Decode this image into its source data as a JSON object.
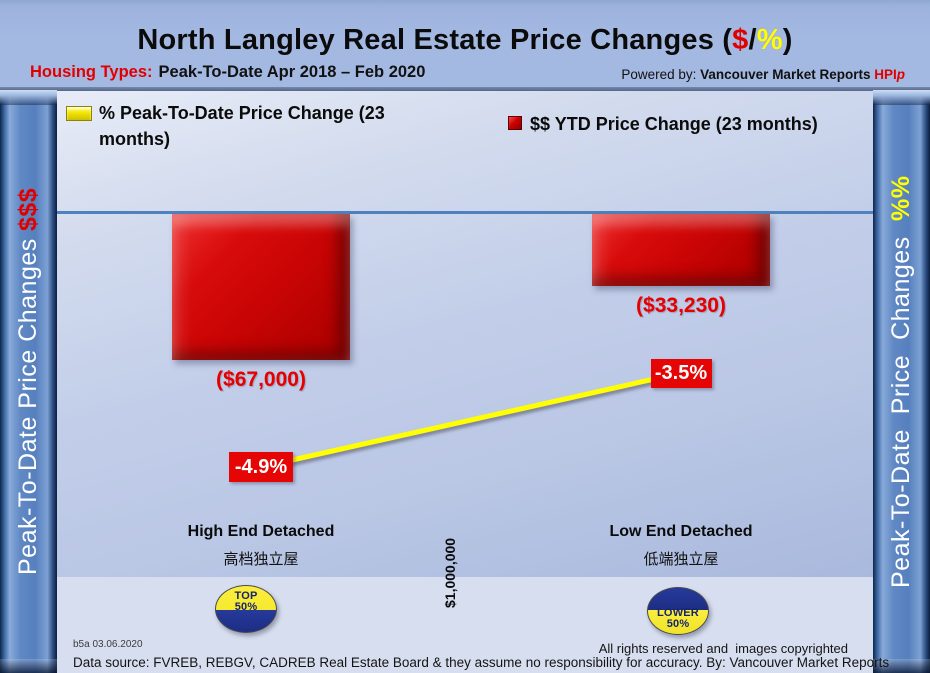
{
  "header": {
    "title": {
      "prefix": "North Langley Real Estate Price Changes (",
      "dollar": "$",
      "slash": "/",
      "percent": "%",
      "suffix": ")"
    },
    "subtitle": {
      "label": "Housing Types:",
      "text": "Peak-To-Date Apr 2018 – Feb 2020"
    },
    "powered_by": {
      "prefix": "Powered by: ",
      "brand": "Vancouver Market Reports ",
      "hpi": "HPI",
      "hpi_suffix": "p"
    }
  },
  "sidebars": {
    "left": {
      "text": "Peak-To-Date Price Changes ",
      "accent": "$$$"
    },
    "right": {
      "text": "Peak-To-Date  Price  Changes  ",
      "accent": "%%"
    }
  },
  "legend": [
    {
      "label": "% Peak-To-Date Price Change (23 months)",
      "swatch_color": "#f3e403"
    },
    {
      "label": "$$ YTD Price Change (23 months)",
      "swatch_color": "#cc0000"
    }
  ],
  "chart_data": {
    "type": "bar",
    "categories": [
      "High End Detached",
      "Low End Detached"
    ],
    "categories_secondary": [
      "高档独立屋",
      "低端独立屋"
    ],
    "series": [
      {
        "name": "$$ YTD Price Change (23 months)",
        "type": "bar",
        "axis": "dollars",
        "values": [
          -67000,
          -33230
        ],
        "labels": [
          "($67,000)",
          "($33,230)"
        ],
        "color": "#cc0000"
      },
      {
        "name": "% Peak-To-Date Price Change (23 months)",
        "type": "line",
        "axis": "percent",
        "values": [
          -4.9,
          -3.5
        ],
        "labels": [
          "-4.9%",
          "-3.5%"
        ],
        "color": "#ffff00"
      }
    ],
    "baseline_value": 0,
    "reference_price_label": "$1,000,000",
    "legend_position": "top",
    "grid": false,
    "title": "North Langley Real Estate Price Changes ($/%)",
    "subtitle": "Peak-To-Date Apr 2018 – Feb 2020"
  },
  "badges": [
    {
      "line1": "TOP",
      "line2": "50%",
      "style": "yellow-top"
    },
    {
      "line1": "LOWER",
      "line2": "50%",
      "style": "yellow-bottom"
    }
  ],
  "footer": {
    "version": "b5a 03.06.2020",
    "rights": "All rights reserved and  images copyrighted",
    "source": "Data source: FVREB, REBGV, CADREB Real Estate Board & they assume no responsibility for accuracy. By: Vancouver Market Reports"
  },
  "colors": {
    "accent_red": "#e00000",
    "accent_yellow": "#ffff00",
    "bar_red": "#cc0000",
    "zero_line_blue": "#4f81bd",
    "pillar_blue": "#567fbe",
    "badge_navy": "#273a9b",
    "badge_yellow": "#f6e92f"
  }
}
